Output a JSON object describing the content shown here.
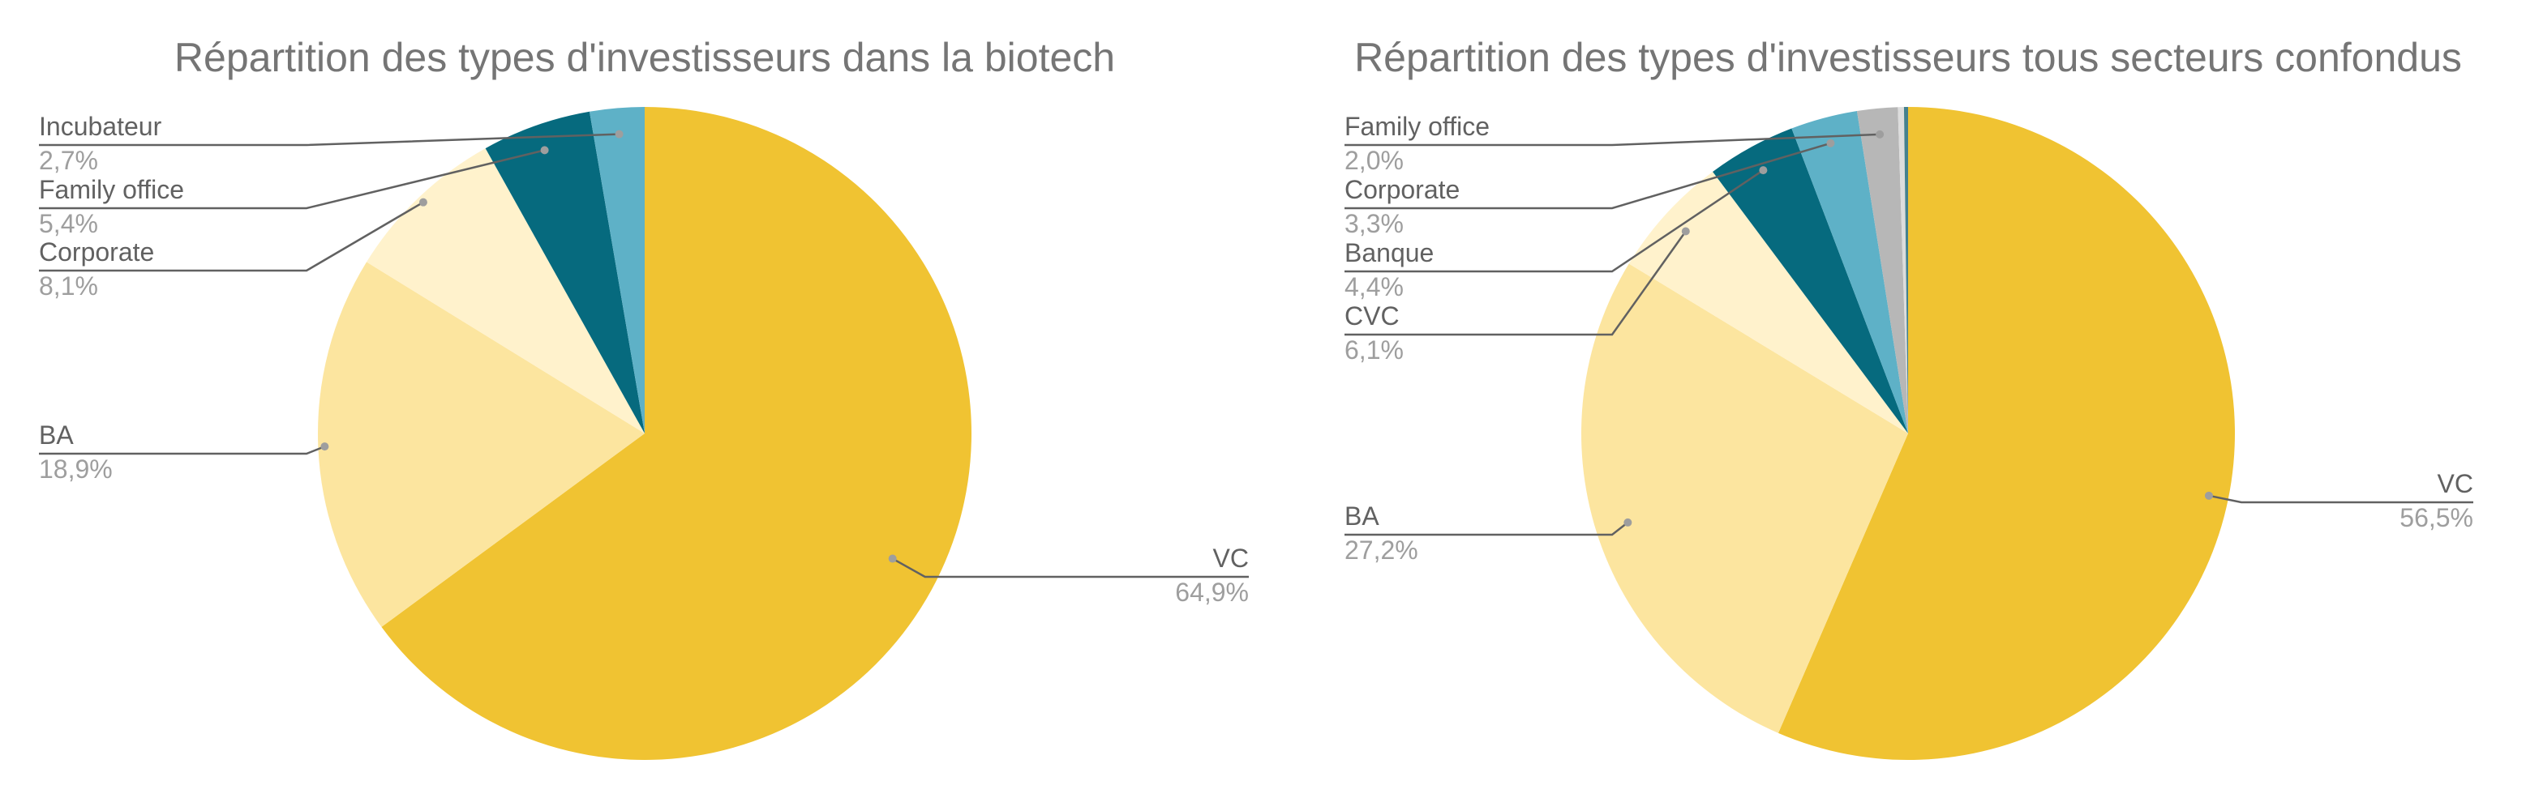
{
  "chart_data": [
    {
      "type": "pie",
      "title": "Répartition des types d'investisseurs dans la biotech",
      "start_angle_deg": 0,
      "direction": "clockwise",
      "slices": [
        {
          "label": "VC",
          "value": 64.9,
          "display": "64,9%",
          "color": "#F0C332"
        },
        {
          "label": "BA",
          "value": 18.9,
          "display": "18,9%",
          "color": "#FCE59F"
        },
        {
          "label": "Corporate",
          "value": 8.1,
          "display": "8,1%",
          "color": "#FFF2CC"
        },
        {
          "label": "Family office",
          "value": 5.4,
          "display": "5,4%",
          "color": "#066A7E"
        },
        {
          "label": "Incubateur",
          "value": 2.7,
          "display": "2,7%",
          "color": "#5EB1C7"
        }
      ]
    },
    {
      "type": "pie",
      "title": "Répartition des types d'investisseurs tous secteurs confondus",
      "start_angle_deg": 0,
      "direction": "clockwise",
      "slices": [
        {
          "label": "VC",
          "value": 56.5,
          "display": "56,5%",
          "color": "#F0C332"
        },
        {
          "label": "BA",
          "value": 27.2,
          "display": "27,2%",
          "color": "#FCE59F"
        },
        {
          "label": "CVC",
          "value": 6.1,
          "display": "6,1%",
          "color": "#FFF2CC"
        },
        {
          "label": "Banque",
          "value": 4.4,
          "display": "4,4%",
          "color": "#066A7E"
        },
        {
          "label": "Corporate",
          "value": 3.3,
          "display": "3,3%",
          "color": "#5EB1C7"
        },
        {
          "label": "Family office",
          "value": 2.0,
          "display": "2,0%",
          "color": "#B7B7B7"
        },
        {
          "label": "",
          "value": 0.3,
          "display": "",
          "color": "#DDDDDD"
        },
        {
          "label": "",
          "value": 0.2,
          "display": "",
          "color": "#45818E"
        }
      ]
    }
  ]
}
